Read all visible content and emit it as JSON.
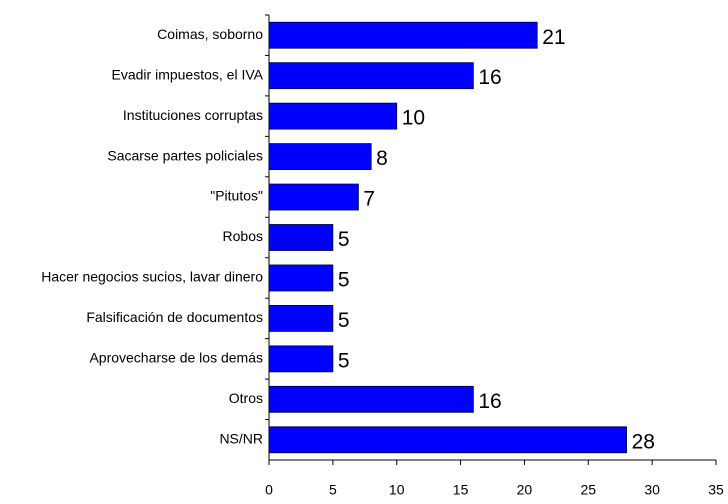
{
  "chart_data": {
    "type": "bar",
    "orientation": "horizontal",
    "categories": [
      "Coimas, soborno",
      "Evadir impuestos, el IVA",
      "Instituciones corruptas",
      "Sacarse partes policiales",
      "\"Pitutos\"",
      "Robos",
      "Hacer negocios sucios, lavar dinero",
      "Falsificación de documentos",
      "Aprovecharse de los demás",
      "Otros",
      "NS/NR"
    ],
    "values": [
      21,
      16,
      10,
      8,
      7,
      5,
      5,
      5,
      5,
      16,
      28
    ],
    "color": "#0000ff",
    "xlim": [
      0,
      35
    ],
    "xticks": [
      0,
      5,
      10,
      15,
      20,
      25,
      30,
      35
    ],
    "grid": false
  }
}
